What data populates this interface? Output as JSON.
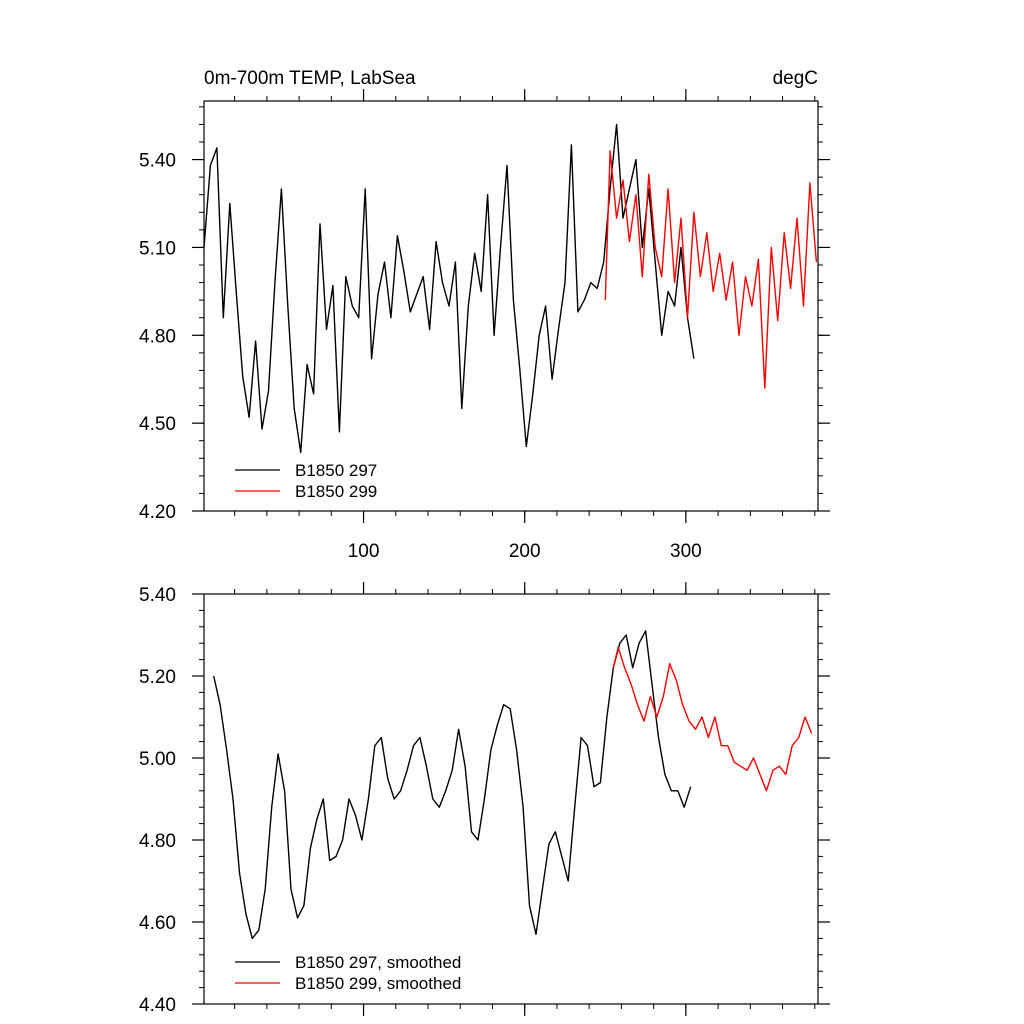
{
  "chart_data": [
    {
      "type": "line",
      "title": "0m-700m TEMP, LabSea",
      "units": "degC",
      "xlim": [
        1,
        382
      ],
      "ylim": [
        4.2,
        5.6
      ],
      "xticks": [
        100,
        200,
        300
      ],
      "xtick_labels": [
        "100",
        "200",
        "300"
      ],
      "yticks": [
        4.2,
        4.5,
        4.8,
        5.1,
        5.4
      ],
      "ytick_labels": [
        "4.20",
        "4.50",
        "4.80",
        "5.10",
        "5.40"
      ],
      "legend_position": "bottom-left",
      "series": [
        {
          "name": "B1850 297",
          "color": "#000000",
          "x": [
            1,
            5,
            9,
            13,
            17,
            21,
            25,
            29,
            33,
            37,
            41,
            45,
            49,
            53,
            57,
            61,
            65,
            69,
            73,
            77,
            81,
            85,
            89,
            93,
            97,
            101,
            105,
            109,
            113,
            117,
            121,
            125,
            129,
            133,
            137,
            141,
            145,
            149,
            153,
            157,
            161,
            165,
            169,
            173,
            177,
            181,
            185,
            189,
            193,
            197,
            201,
            205,
            209,
            213,
            217,
            221,
            225,
            229,
            233,
            237,
            241,
            245,
            249,
            253,
            257,
            261,
            265,
            269,
            273,
            277,
            281,
            285,
            289,
            293,
            297,
            301,
            305
          ],
          "values": [
            5.1,
            5.38,
            5.44,
            4.86,
            5.25,
            4.95,
            4.66,
            4.52,
            4.78,
            4.48,
            4.61,
            4.98,
            5.3,
            4.9,
            4.55,
            4.4,
            4.7,
            4.6,
            5.18,
            4.82,
            4.97,
            4.47,
            5.0,
            4.9,
            4.86,
            5.3,
            4.72,
            4.94,
            5.05,
            4.86,
            5.14,
            5.02,
            4.88,
            4.94,
            5.0,
            4.82,
            5.12,
            4.98,
            4.9,
            5.05,
            4.55,
            4.9,
            5.08,
            4.95,
            5.28,
            4.8,
            5.1,
            5.38,
            4.92,
            4.68,
            4.42,
            4.6,
            4.8,
            4.9,
            4.65,
            4.82,
            4.98,
            5.45,
            4.88,
            4.92,
            4.98,
            4.96,
            5.05,
            5.3,
            5.52,
            5.2,
            5.3,
            5.4,
            5.1,
            5.3,
            5.05,
            4.8,
            4.95,
            4.9,
            5.1,
            4.86,
            4.72
          ]
        },
        {
          "name": "B1850 299",
          "color": "#ff0000",
          "x": [
            250,
            253,
            257,
            261,
            265,
            269,
            273,
            277,
            281,
            285,
            289,
            293,
            297,
            301,
            305,
            309,
            313,
            317,
            321,
            325,
            329,
            333,
            337,
            341,
            345,
            349,
            353,
            357,
            361,
            365,
            369,
            373,
            377,
            381
          ],
          "values": [
            4.92,
            5.43,
            5.2,
            5.33,
            5.12,
            5.28,
            5.0,
            5.35,
            5.1,
            5.0,
            5.3,
            4.98,
            5.2,
            4.86,
            5.22,
            5.0,
            5.15,
            4.95,
            5.08,
            4.92,
            5.05,
            4.8,
            5.0,
            4.9,
            5.06,
            4.62,
            5.1,
            4.85,
            5.15,
            4.96,
            5.2,
            4.9,
            5.32,
            5.05
          ]
        }
      ]
    },
    {
      "type": "line",
      "xlim": [
        1,
        382
      ],
      "ylim": [
        4.4,
        5.4
      ],
      "yticks": [
        4.4,
        4.6,
        4.8,
        5.0,
        5.2,
        5.4
      ],
      "ytick_labels": [
        "4.40",
        "4.60",
        "4.80",
        "5.00",
        "5.20",
        "5.40"
      ],
      "legend_position": "bottom-left",
      "series": [
        {
          "name": "B1850 297, smoothed",
          "color": "#000000",
          "x": [
            7,
            11,
            15,
            19,
            23,
            27,
            31,
            35,
            39,
            43,
            47,
            51,
            55,
            59,
            63,
            67,
            71,
            75,
            79,
            83,
            87,
            91,
            95,
            99,
            103,
            107,
            111,
            115,
            119,
            123,
            127,
            131,
            135,
            139,
            143,
            147,
            151,
            155,
            159,
            163,
            167,
            171,
            175,
            179,
            183,
            187,
            191,
            195,
            199,
            203,
            207,
            211,
            215,
            219,
            223,
            227,
            231,
            235,
            239,
            243,
            247,
            251,
            255,
            259,
            263,
            267,
            271,
            275,
            279,
            283,
            287,
            291,
            295,
            299,
            303
          ],
          "values": [
            5.2,
            5.13,
            5.02,
            4.9,
            4.72,
            4.62,
            4.56,
            4.58,
            4.68,
            4.88,
            5.01,
            4.92,
            4.68,
            4.61,
            4.64,
            4.78,
            4.85,
            4.9,
            4.75,
            4.76,
            4.8,
            4.9,
            4.86,
            4.8,
            4.9,
            5.03,
            5.05,
            4.95,
            4.9,
            4.92,
            4.97,
            5.03,
            5.05,
            4.98,
            4.9,
            4.88,
            4.92,
            4.97,
            5.07,
            4.98,
            4.82,
            4.8,
            4.9,
            5.02,
            5.08,
            5.13,
            5.12,
            5.02,
            4.88,
            4.64,
            4.57,
            4.68,
            4.79,
            4.82,
            4.76,
            4.7,
            4.88,
            5.05,
            5.03,
            4.93,
            4.94,
            5.1,
            5.22,
            5.28,
            5.3,
            5.22,
            5.28,
            5.31,
            5.18,
            5.05,
            4.96,
            4.92,
            4.92,
            4.88,
            4.93
          ]
        },
        {
          "name": "B1850 299, smoothed",
          "color": "#ff0000",
          "x": [
            255,
            258,
            262,
            266,
            270,
            274,
            278,
            282,
            286,
            290,
            294,
            298,
            302,
            306,
            310,
            314,
            318,
            322,
            326,
            330,
            334,
            338,
            342,
            346,
            350,
            354,
            358,
            362,
            366,
            370,
            374,
            378
          ],
          "values": [
            5.22,
            5.27,
            5.22,
            5.18,
            5.13,
            5.09,
            5.15,
            5.1,
            5.15,
            5.23,
            5.19,
            5.13,
            5.09,
            5.07,
            5.1,
            5.05,
            5.1,
            5.03,
            5.03,
            4.99,
            4.98,
            4.97,
            5.0,
            4.96,
            4.92,
            4.97,
            4.98,
            4.96,
            5.03,
            5.05,
            5.1,
            5.06
          ]
        }
      ]
    }
  ]
}
